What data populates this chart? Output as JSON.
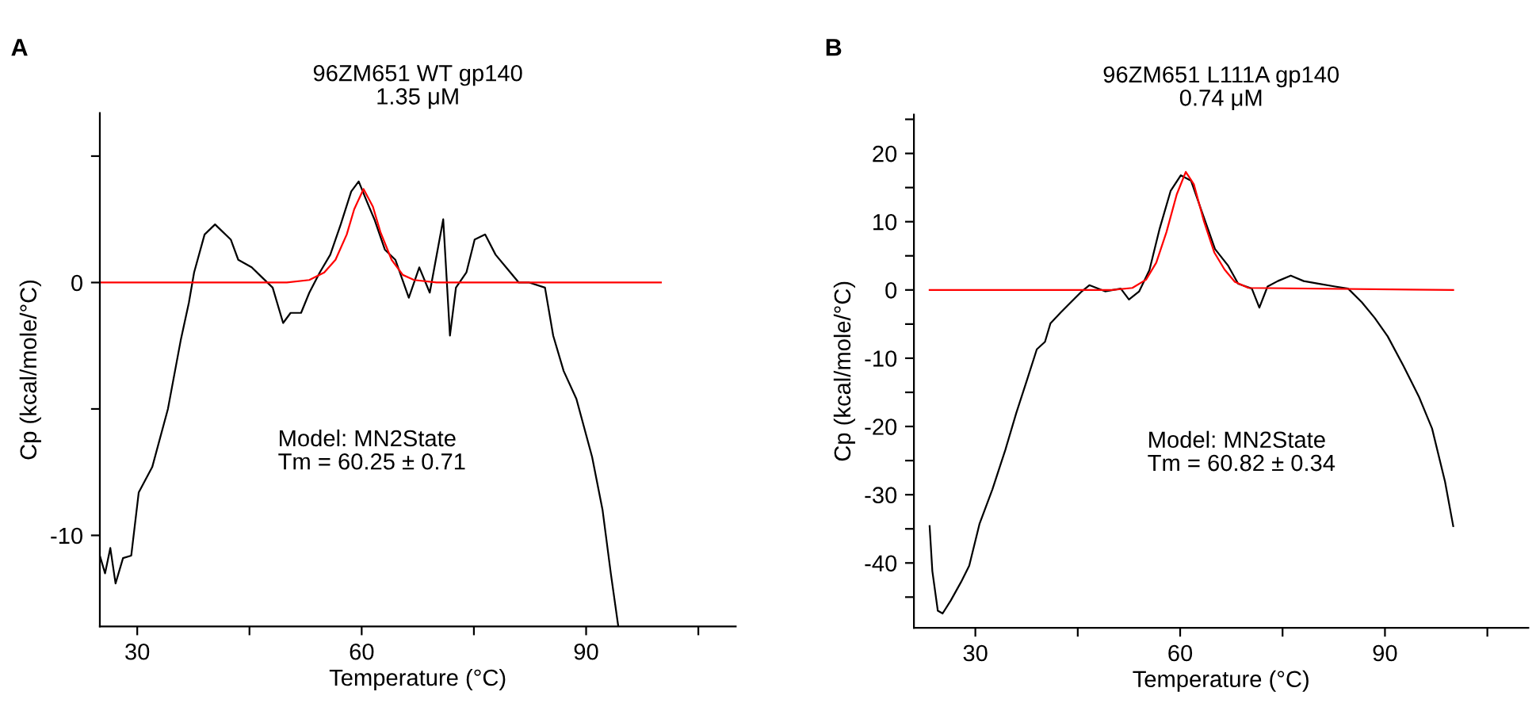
{
  "chart_data": [
    {
      "type": "line",
      "title": "96ZM651 WT gp140",
      "subtitle": "1.35 μM",
      "xlabel": "Temperature (°C)",
      "ylabel": "Cp (kcal/mole/°C)",
      "annotations": [
        "A",
        "Model: MN2State\nTm = 60.25 ± 0.71"
      ],
      "xlim": [
        25,
        110
      ],
      "xticks": [
        30,
        {
          "value": 45,
          "label": null
        },
        60,
        {
          "value": 75,
          "label": null
        },
        90,
        {
          "value": 105,
          "label": null
        }
      ],
      "ylim": [
        -13.6,
        6.7
      ],
      "yticks": [
        -10,
        {
          "value": -5,
          "label": null
        },
        0,
        {
          "value": 5,
          "label": null
        }
      ],
      "grid": false,
      "legend": false,
      "marker": "none",
      "line_style": "solid",
      "series": [
        {
          "color": "#000000",
          "x": [
            25,
            25.7,
            26.4,
            27.1,
            28.1,
            29.2,
            30.2,
            32.0,
            34.1,
            35.8,
            36.9,
            37.6,
            39.0,
            40.4,
            42.5,
            43.5,
            45.3,
            46.7,
            48.1,
            49.5,
            50.5,
            51.9,
            53.0,
            54.4,
            55.8,
            57.2,
            58.6,
            59.6,
            60.7,
            61.7,
            63.1,
            64.5,
            66.3,
            67.7,
            69.1,
            70.9,
            71.8,
            72.6,
            74.0,
            75.1,
            76.5,
            77.9,
            79.3,
            81.0,
            82.4,
            84.5,
            85.6,
            87.0,
            88.7,
            90.8,
            92.2,
            93.3,
            94.3
          ],
          "values": [
            -10.8,
            -11.5,
            -10.5,
            -11.9,
            -10.9,
            -10.8,
            -8.3,
            -7.3,
            -5.0,
            -2.3,
            -0.8,
            0.4,
            1.9,
            2.3,
            1.7,
            0.9,
            0.6,
            0.2,
            -0.2,
            -1.6,
            -1.2,
            -1.2,
            -0.4,
            0.4,
            1.1,
            2.3,
            3.6,
            4.0,
            3.2,
            2.5,
            1.3,
            0.9,
            -0.6,
            0.6,
            -0.4,
            2.5,
            -2.1,
            -0.2,
            0.4,
            1.7,
            1.9,
            1.1,
            0.6,
            0,
            0,
            -0.2,
            -2.1,
            -3.5,
            -4.6,
            -6.9,
            -9.0,
            -11.5,
            -13.6
          ]
        },
        {
          "color": "#ff0000",
          "x": [
            25,
            50,
            53,
            55,
            56.5,
            58,
            59,
            60.25,
            61.5,
            62.5,
            64,
            65.5,
            67,
            70,
            100
          ],
          "values": [
            0,
            0,
            0.1,
            0.4,
            0.9,
            1.9,
            2.9,
            3.7,
            3.0,
            2.0,
            0.9,
            0.3,
            0.1,
            0,
            0
          ]
        }
      ]
    },
    {
      "type": "line",
      "title": "96ZM651 L111A gp140",
      "subtitle": "0.74 μM",
      "xlabel": "Temperature (°C)",
      "ylabel": "Cp (kcal/mole/°C)",
      "annotations": [
        "B",
        "Model: MN2State\nTm = 60.82 ± 0.34"
      ],
      "xlim": [
        21,
        111
      ],
      "xticks": [
        30,
        {
          "value": 45,
          "label": null
        },
        60,
        {
          "value": 75,
          "label": null
        },
        90,
        {
          "value": 105,
          "label": null
        }
      ],
      "ylim": [
        -49.5,
        25.7
      ],
      "yticks": [
        {
          "value": -45,
          "label": null
        },
        -40,
        {
          "value": -35,
          "label": null
        },
        -30,
        {
          "value": -25,
          "label": null
        },
        -20,
        {
          "value": -15,
          "label": null
        },
        -10,
        {
          "value": -5,
          "label": null
        },
        0,
        {
          "value": 5,
          "label": null
        },
        10,
        {
          "value": 15,
          "label": null
        },
        20,
        {
          "value": 25,
          "label": null
        }
      ],
      "grid": false,
      "legend": false,
      "marker": "none",
      "line_style": "solid",
      "series": [
        {
          "color": "#000000",
          "x": [
            23.3,
            23.7,
            24.5,
            25.2,
            26.4,
            27.9,
            29.1,
            30.6,
            32.5,
            34.4,
            36.0,
            37.5,
            39.0,
            40.2,
            41.0,
            42.5,
            44.0,
            45.6,
            46.7,
            49.0,
            51.3,
            52.5,
            54.0,
            55.5,
            57.0,
            58.6,
            60.1,
            61.6,
            63.2,
            65.1,
            67.0,
            68.5,
            70.5,
            71.6,
            72.8,
            74.3,
            76.2,
            78.1,
            80.4,
            82.7,
            84.6,
            86.6,
            88.5,
            90.4,
            92.7,
            95.0,
            96.9,
            98.8,
            100.0
          ],
          "values": [
            -34.6,
            -41.2,
            -47.0,
            -47.4,
            -45.5,
            -42.8,
            -40.4,
            -34.3,
            -29.2,
            -23.4,
            -18.0,
            -13.4,
            -8.7,
            -7.6,
            -4.9,
            -3.3,
            -1.8,
            -0.2,
            0.7,
            -0.2,
            0.2,
            -1.4,
            -0.2,
            2.9,
            9.0,
            14.5,
            16.8,
            16.0,
            11.4,
            6.0,
            3.6,
            0.9,
            0.2,
            -2.6,
            0.5,
            1.3,
            2.1,
            1.3,
            0.9,
            0.5,
            0.2,
            -1.8,
            -4.1,
            -6.8,
            -11.1,
            -15.7,
            -20.3,
            -28.1,
            -34.6
          ]
        },
        {
          "color": "#ff0000",
          "x": [
            23.3,
            50,
            53,
            55,
            56.5,
            58,
            59.5,
            60.82,
            62,
            63.5,
            65,
            66.5,
            68,
            70,
            100
          ],
          "values": [
            0,
            0,
            0.3,
            1.5,
            4,
            8.5,
            14,
            17.3,
            15.5,
            10,
            5.5,
            3,
            1.2,
            0.3,
            0
          ]
        }
      ]
    }
  ]
}
